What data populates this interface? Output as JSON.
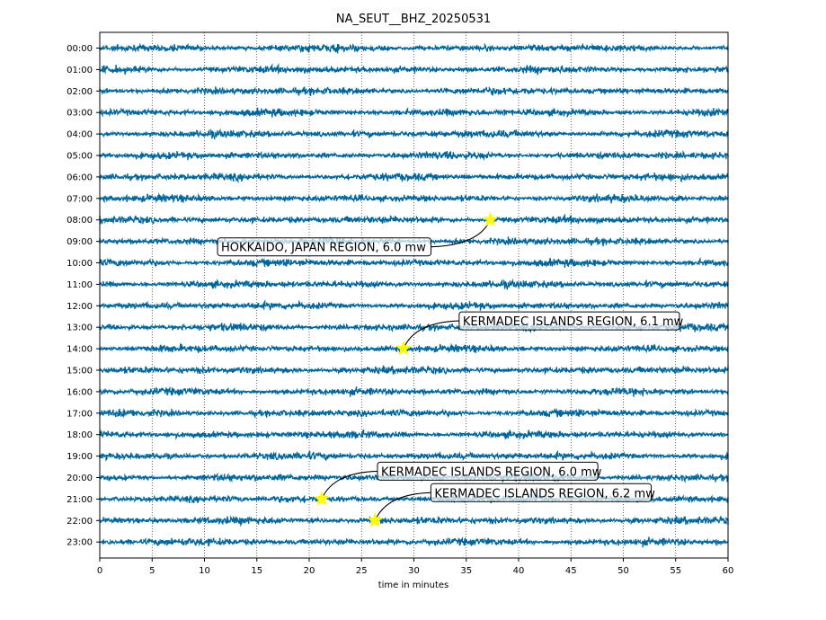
{
  "chart_data": {
    "type": "line",
    "title": "NA_SEUT__BHZ_20250531",
    "xlabel": "time in minutes",
    "ylabel": "",
    "xlim": [
      0,
      60
    ],
    "x_ticks": [
      "0",
      "5",
      "10",
      "15",
      "20",
      "25",
      "30",
      "35",
      "40",
      "45",
      "50",
      "55",
      "60"
    ],
    "y_tick_labels": [
      "00:00",
      "01:00",
      "02:00",
      "03:00",
      "04:00",
      "05:00",
      "06:00",
      "07:00",
      "08:00",
      "09:00",
      "10:00",
      "11:00",
      "12:00",
      "13:00",
      "14:00",
      "15:00",
      "16:00",
      "17:00",
      "18:00",
      "19:00",
      "20:00",
      "21:00",
      "22:00",
      "23:00"
    ],
    "trace_color": "#006699",
    "grid": "vertical dotted",
    "events": [
      {
        "label": "HOKKAIDO, JAPAN REGION, 6.0 mw",
        "hour": 8,
        "minute": 37.3
      },
      {
        "label": "KERMADEC ISLANDS REGION, 6.1 mw",
        "hour": 14,
        "minute": 29.0
      },
      {
        "label": "KERMADEC ISLANDS REGION, 6.0 mw",
        "hour": 21,
        "minute": 21.2
      },
      {
        "label": "KERMADEC ISLANDS REGION, 6.2 mw",
        "hour": 22,
        "minute": 26.3
      }
    ],
    "marker_color": "#ffff00"
  }
}
